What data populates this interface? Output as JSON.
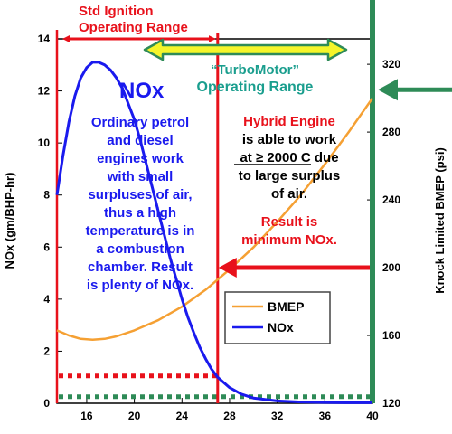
{
  "chart_data": {
    "type": "line",
    "x_ticks": [
      16,
      20,
      24,
      28,
      32,
      36,
      40
    ],
    "xlim": [
      13.5,
      40
    ],
    "y_left": {
      "label": "NOx (gm/BHP-hr)",
      "ticks": [
        0,
        2,
        4,
        6,
        8,
        10,
        12,
        14
      ],
      "lim": [
        0,
        14
      ]
    },
    "y_right": {
      "label": "Knock Limited BMEP (psi)",
      "ticks": [
        120,
        160,
        200,
        240,
        280,
        320
      ],
      "lim": [
        120,
        335
      ]
    },
    "series": [
      {
        "name": "BMEP",
        "axis": "right",
        "color": "#f5a033",
        "points": [
          [
            13.5,
            163
          ],
          [
            14.5,
            160
          ],
          [
            15.5,
            158
          ],
          [
            16.5,
            157.5
          ],
          [
            17.5,
            158
          ],
          [
            18.5,
            159.5
          ],
          [
            20,
            163
          ],
          [
            22,
            169
          ],
          [
            24,
            177
          ],
          [
            26,
            187
          ],
          [
            28,
            199
          ],
          [
            30,
            212
          ],
          [
            32,
            227
          ],
          [
            34,
            243
          ],
          [
            36,
            261
          ],
          [
            38,
            280
          ],
          [
            40,
            300
          ]
        ]
      },
      {
        "name": "NOx",
        "axis": "left",
        "color": "#1a1aee",
        "points": [
          [
            13.5,
            8.0
          ],
          [
            14,
            9.5
          ],
          [
            14.5,
            10.8
          ],
          [
            15,
            11.8
          ],
          [
            15.5,
            12.5
          ],
          [
            16,
            12.9
          ],
          [
            16.5,
            13.1
          ],
          [
            17,
            13.1
          ],
          [
            17.5,
            13.0
          ],
          [
            18,
            12.8
          ],
          [
            18.5,
            12.5
          ],
          [
            19,
            12.1
          ],
          [
            19.5,
            11.5
          ],
          [
            20,
            10.9
          ],
          [
            20.5,
            10.1
          ],
          [
            21,
            9.2
          ],
          [
            21.5,
            8.3
          ],
          [
            22,
            7.4
          ],
          [
            22.5,
            6.5
          ],
          [
            23,
            5.6
          ],
          [
            23.5,
            4.8
          ],
          [
            24,
            4.0
          ],
          [
            24.5,
            3.3
          ],
          [
            25,
            2.7
          ],
          [
            25.5,
            2.15
          ],
          [
            26,
            1.7
          ],
          [
            26.5,
            1.3
          ],
          [
            27,
            1.0
          ],
          [
            28,
            0.6
          ],
          [
            29,
            0.35
          ],
          [
            30,
            0.2
          ],
          [
            32,
            0.09
          ],
          [
            34,
            0.05
          ],
          [
            36,
            0.03
          ],
          [
            38,
            0.02
          ],
          [
            40,
            0.02
          ]
        ]
      }
    ],
    "legend": {
      "placement": "lower-right",
      "entries": [
        "BMEP",
        "NOx"
      ]
    },
    "reference_lines": {
      "std_ignition_limit_x": 27,
      "hybrid_line_x": 40,
      "nox_red_dotted_y": 1.05,
      "nox_green_dotted_y": 0.25,
      "bmep_arrow_y": 200,
      "bmep_right_arrow_y": 305
    },
    "colors": {
      "red": "#e8111b",
      "green": "#2e8b57",
      "orange": "#f5a033",
      "blue": "#1a1aee",
      "teal": "#1a9e8e",
      "arrow_fill": "#f5f52a"
    },
    "annotations": {
      "std_range_line1": "Std Ignition",
      "std_range_line2": "Operating Range",
      "nox_title": "NOx",
      "turbo_line1": "“TurboMotor”",
      "turbo_line2": "Operating Range",
      "blue_text": [
        "Ordinary petrol",
        "and diesel",
        "engines work",
        "with small",
        "surpluses of air,",
        "thus a high",
        "temperature is in",
        "a combustion",
        "chamber. Result",
        "is plenty of NOx."
      ],
      "hybrid_title": "Hybrid Engine",
      "hybrid_text": [
        "is able to work",
        "at ≥ 2000 C due",
        "to large surplus",
        "of air."
      ],
      "hybrid_underline_text": "at ≥ 2000 C",
      "hybrid_result": [
        "Result is",
        "minimum NOx."
      ]
    }
  }
}
